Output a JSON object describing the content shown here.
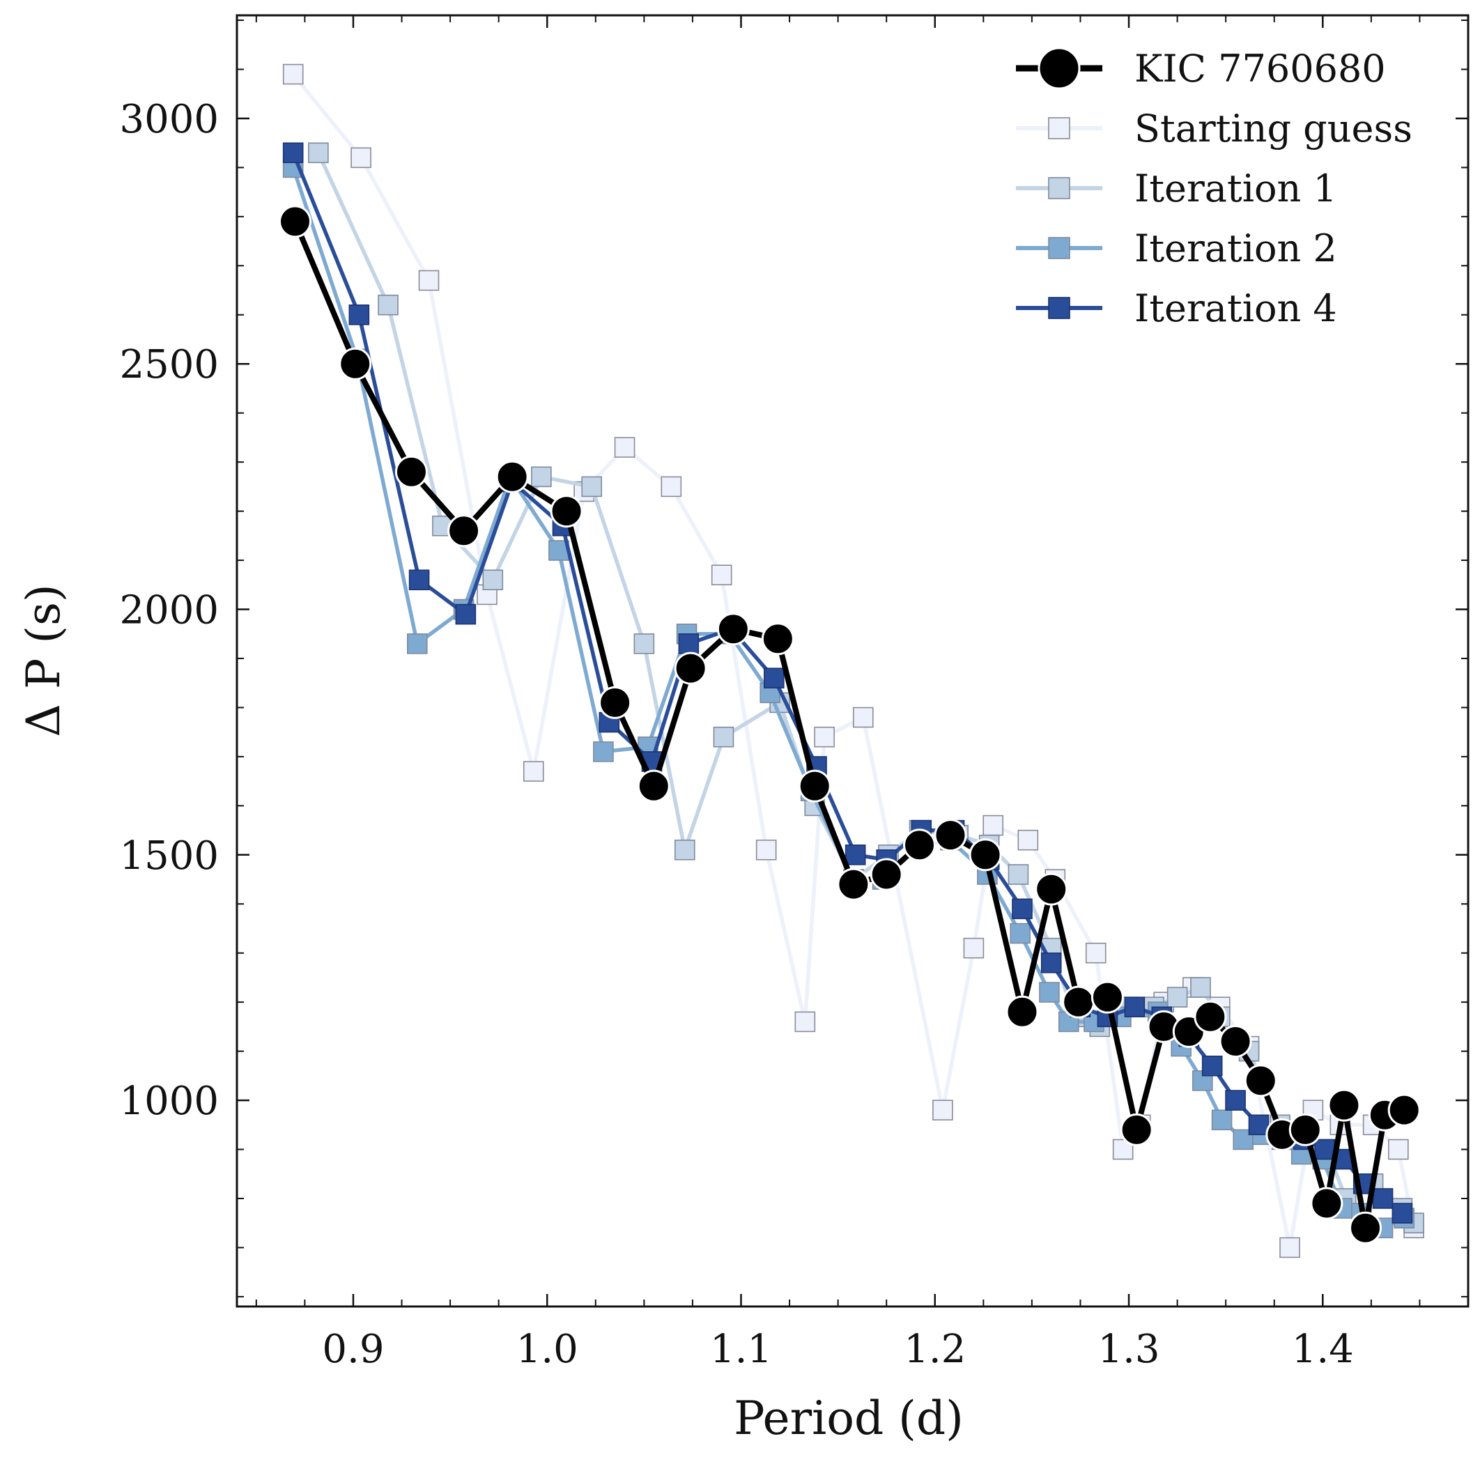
{
  "chart_data": {
    "type": "line",
    "xlabel": "Period (d)",
    "ylabel": "Δ P (s)",
    "xlim": [
      0.84,
      1.475
    ],
    "ylim": [
      580,
      3210
    ],
    "xticks": [
      {
        "value": 0.9,
        "label": "0.9"
      },
      {
        "value": 1.0,
        "label": "1.0"
      },
      {
        "value": 1.1,
        "label": "1.1"
      },
      {
        "value": 1.2,
        "label": "1.2"
      },
      {
        "value": 1.3,
        "label": "1.3"
      },
      {
        "value": 1.4,
        "label": "1.4"
      }
    ],
    "yticks": [
      {
        "value": 1000,
        "label": "1000"
      },
      {
        "value": 1500,
        "label": "1500"
      },
      {
        "value": 2000,
        "label": "2000"
      },
      {
        "value": 2500,
        "label": "2500"
      },
      {
        "value": 3000,
        "label": "3000"
      }
    ],
    "legend_position": "top-right",
    "grid": false,
    "series": [
      {
        "name": "Starting guess",
        "color": "#edf1fb",
        "marker": "square-open",
        "x": [
          0.869,
          0.904,
          0.939,
          0.969,
          0.993,
          1.019,
          1.04,
          1.064,
          1.09,
          1.113,
          1.133,
          1.143,
          1.163,
          1.204,
          1.22,
          1.23,
          1.248,
          1.262,
          1.283,
          1.297,
          1.306,
          1.318,
          1.333,
          1.347,
          1.362,
          1.383,
          1.395,
          1.409,
          1.426,
          1.439,
          1.447
        ],
        "y": [
          3090,
          2920,
          2670,
          2030,
          1670,
          2240,
          2330,
          2250,
          2070,
          1510,
          1160,
          1740,
          1780,
          980,
          1310,
          1560,
          1530,
          1450,
          1300,
          900,
          950,
          1200,
          1230,
          1190,
          1110,
          700,
          980,
          950,
          950,
          900,
          740
        ]
      },
      {
        "name": "Iteration 1",
        "color": "#c2d4e6",
        "marker": "square",
        "x": [
          0.882,
          0.918,
          0.946,
          0.972,
          0.997,
          1.023,
          1.05,
          1.071,
          1.091,
          1.12,
          1.138,
          1.158,
          1.176,
          1.192,
          1.212,
          1.228,
          1.243,
          1.26,
          1.272,
          1.285,
          1.3,
          1.313,
          1.325,
          1.337,
          1.347,
          1.362,
          1.378,
          1.39,
          1.402,
          1.412,
          1.426,
          1.441,
          1.447
        ],
        "y": [
          2930,
          2620,
          2170,
          2060,
          2270,
          2250,
          1930,
          1510,
          1740,
          1810,
          1600,
          1450,
          1500,
          1550,
          1540,
          1520,
          1460,
          1310,
          1170,
          1150,
          1190,
          1190,
          1210,
          1230,
          1170,
          1100,
          950,
          900,
          900,
          800,
          830,
          780,
          750
        ]
      },
      {
        "name": "Iteration 2",
        "color": "#7eaad2",
        "marker": "square",
        "x": [
          0.869,
          0.902,
          0.933,
          0.957,
          0.981,
          1.006,
          1.029,
          1.052,
          1.072,
          1.094,
          1.115,
          1.136,
          1.158,
          1.173,
          1.192,
          1.208,
          1.227,
          1.244,
          1.259,
          1.269,
          1.282,
          1.296,
          1.315,
          1.327,
          1.338,
          1.348,
          1.359,
          1.369,
          1.379,
          1.389,
          1.4,
          1.41,
          1.42,
          1.431,
          1.442
        ],
        "y": [
          2900,
          2510,
          1930,
          2000,
          2270,
          2120,
          1710,
          1720,
          1950,
          1950,
          1830,
          1630,
          1450,
          1450,
          1520,
          1530,
          1460,
          1340,
          1220,
          1160,
          1160,
          1170,
          1180,
          1110,
          1040,
          960,
          920,
          930,
          920,
          890,
          880,
          780,
          770,
          740,
          760
        ]
      },
      {
        "name": "Iteration 4",
        "color": "#2a4d99",
        "marker": "square",
        "x": [
          0.869,
          0.903,
          0.934,
          0.958,
          0.982,
          1.008,
          1.032,
          1.054,
          1.073,
          1.095,
          1.117,
          1.139,
          1.159,
          1.175,
          1.193,
          1.21,
          1.228,
          1.245,
          1.26,
          1.275,
          1.289,
          1.303,
          1.317,
          1.331,
          1.343,
          1.355,
          1.367,
          1.379,
          1.39,
          1.401,
          1.411,
          1.421,
          1.431,
          1.441
        ],
        "y": [
          2930,
          2600,
          2060,
          1990,
          2260,
          2170,
          1770,
          1690,
          1930,
          1960,
          1860,
          1680,
          1500,
          1490,
          1550,
          1550,
          1490,
          1390,
          1280,
          1190,
          1170,
          1190,
          1170,
          1130,
          1070,
          1000,
          950,
          930,
          920,
          900,
          880,
          830,
          800,
          770
        ]
      },
      {
        "name": "KIC 7760680",
        "color": "#000000",
        "marker": "circle",
        "x": [
          0.87,
          0.901,
          0.93,
          0.957,
          0.982,
          1.01,
          1.035,
          1.055,
          1.074,
          1.096,
          1.119,
          1.138,
          1.158,
          1.175,
          1.192,
          1.208,
          1.226,
          1.245,
          1.26,
          1.274,
          1.289,
          1.304,
          1.318,
          1.331,
          1.342,
          1.355,
          1.368,
          1.379,
          1.391,
          1.402,
          1.411,
          1.422,
          1.432,
          1.442
        ],
        "y": [
          2790,
          2500,
          2280,
          2160,
          2270,
          2200,
          1810,
          1640,
          1880,
          1960,
          1940,
          1640,
          1440,
          1460,
          1520,
          1540,
          1500,
          1180,
          1430,
          1200,
          1210,
          940,
          1150,
          1140,
          1170,
          1120,
          1040,
          930,
          940,
          790,
          990,
          740,
          970,
          980
        ]
      }
    ]
  },
  "legend": [
    {
      "label": "KIC 7760680",
      "series_index": 4
    },
    {
      "label": "Starting guess",
      "series_index": 0
    },
    {
      "label": "Iteration 1",
      "series_index": 1
    },
    {
      "label": "Iteration 2",
      "series_index": 2
    },
    {
      "label": "Iteration 4",
      "series_index": 3
    }
  ]
}
